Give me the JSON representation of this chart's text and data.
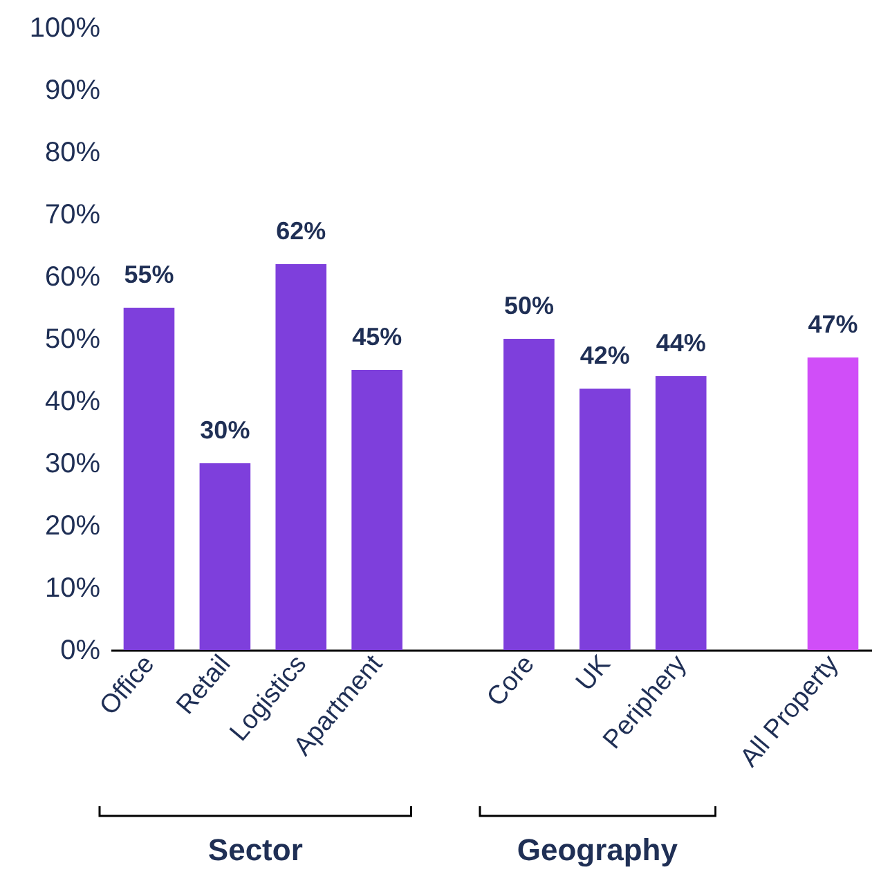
{
  "chart_data": {
    "type": "bar",
    "categories": [
      "Office",
      "Retail",
      "Logistics",
      "Apartment",
      null,
      "Core",
      "UK",
      "Periphery",
      null,
      "All Property"
    ],
    "values": [
      55,
      30,
      62,
      45,
      null,
      50,
      42,
      44,
      null,
      47
    ],
    "colors": [
      "#7e3fdc",
      "#7e3fdc",
      "#7e3fdc",
      "#7e3fdc",
      null,
      "#7e3fdc",
      "#7e3fdc",
      "#7e3fdc",
      null,
      "#d04ef8"
    ],
    "value_labels": [
      "55%",
      "30%",
      "62%",
      "45%",
      null,
      "50%",
      "42%",
      "44%",
      null,
      "47%"
    ],
    "ylim": [
      0,
      100
    ],
    "yticks": [
      {
        "value": 0,
        "label": "0%"
      },
      {
        "value": 10,
        "label": "10%"
      },
      {
        "value": 20,
        "label": "20%"
      },
      {
        "value": 30,
        "label": "30%"
      },
      {
        "value": 40,
        "label": "40%"
      },
      {
        "value": 50,
        "label": "50%"
      },
      {
        "value": 60,
        "label": "60%"
      },
      {
        "value": 70,
        "label": "70%"
      },
      {
        "value": 80,
        "label": "80%"
      },
      {
        "value": 90,
        "label": "90%"
      },
      {
        "value": 100,
        "label": "100%"
      }
    ],
    "grid": false,
    "annotations": [
      "Sector",
      "Geography"
    ]
  }
}
